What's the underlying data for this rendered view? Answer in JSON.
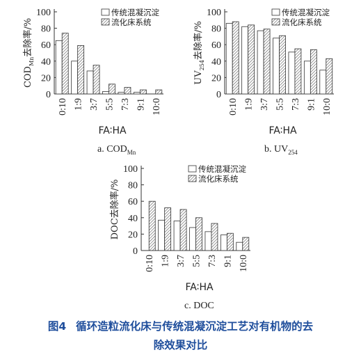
{
  "chart_data": [
    {
      "type": "bar",
      "panel_label": "a. COD",
      "panel_label_sub": "Mn",
      "ylabel": "COD",
      "ylabel_sub": "Mn",
      "ylabel_suffix": "去除率/%",
      "xlabel": "FA∶HA",
      "categories": [
        "0:10",
        "1:9",
        "3:7",
        "5:5",
        "7:3",
        "9:1",
        "10:0"
      ],
      "ylim": [
        0,
        100
      ],
      "yticks": [
        0,
        20,
        40,
        60,
        80,
        100
      ],
      "series": [
        {
          "name": "传统混凝沉淀",
          "values": [
            65,
            40,
            28,
            3,
            2,
            2,
            0
          ]
        },
        {
          "name": "流化床系统",
          "values": [
            74,
            59,
            35,
            12,
            8,
            5,
            5
          ]
        }
      ],
      "legend_position": "top-right"
    },
    {
      "type": "bar",
      "panel_label": "b. UV",
      "panel_label_sub": "254",
      "ylabel": "UV",
      "ylabel_sub": "254",
      "ylabel_suffix": "去除率/%",
      "xlabel": "FA∶HA",
      "categories": [
        "0:10",
        "1:9",
        "3:7",
        "5:5",
        "7:3",
        "9:1",
        "10:0"
      ],
      "ylim": [
        0,
        100
      ],
      "yticks": [
        0,
        20,
        40,
        60,
        80,
        100
      ],
      "series": [
        {
          "name": "传统混凝沉淀",
          "values": [
            86,
            82,
            77,
            68,
            51,
            40,
            29
          ]
        },
        {
          "name": "流化床系统",
          "values": [
            88,
            84,
            79,
            71,
            55,
            54,
            43
          ]
        }
      ],
      "legend_position": "top-right"
    },
    {
      "type": "bar",
      "panel_label": "c. DOC",
      "panel_label_sub": "",
      "ylabel": "DOC",
      "ylabel_sub": "",
      "ylabel_suffix": "去除率/%",
      "xlabel": "FA∶HA",
      "categories": [
        "0:10",
        "1:9",
        "3:7",
        "5:5",
        "7:3",
        "9:1",
        "10:0"
      ],
      "ylim": [
        0,
        100
      ],
      "yticks": [
        0,
        20,
        40,
        60,
        80,
        100
      ],
      "series": [
        {
          "name": "传统混凝沉淀",
          "values": [
            0,
            37,
            36,
            28,
            23,
            19,
            10
          ]
        },
        {
          "name": "流化床系统",
          "values": [
            60,
            52,
            50,
            40,
            33,
            21,
            16
          ]
        }
      ],
      "legend_position": "top-right"
    }
  ],
  "caption": {
    "number": "图4",
    "text_line1": "循环造粒流化床与传统混凝沉淀工艺对有机物的去",
    "text_line2": "除效果对比"
  },
  "colors": {
    "caption": "#1f4e9c",
    "axis": "#333333",
    "bar_conventional": "#ffffff",
    "bar_fluidized_hatch": "#555555"
  }
}
